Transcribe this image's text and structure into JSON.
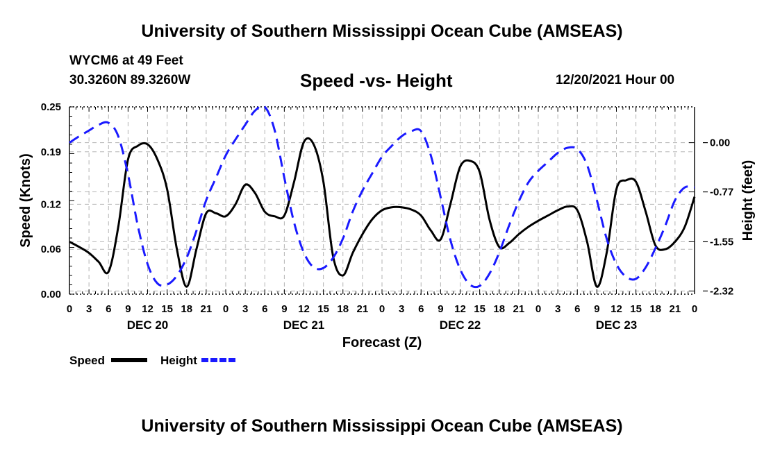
{
  "page": {
    "top_title": "University of Southern Mississippi Ocean Cube (AMSEAS)",
    "bottom_title": "University of Southern Mississippi Ocean Cube (AMSEAS)",
    "station": "WYCM6 at 49 Feet",
    "coords": "30.3260N  89.3260W",
    "datetime": "12/20/2021 Hour 00"
  },
  "chart_data": {
    "type": "line",
    "title": "Speed -vs- Height",
    "xlabel": "Forecast (Z)",
    "ylabel": "Speed (Knots)",
    "y2label": "Height (feet)",
    "ylim": [
      0,
      0.25
    ],
    "y2lim": [
      -2.37,
      0.56
    ],
    "yticks": [
      0.0,
      0.06,
      0.12,
      0.19,
      0.25
    ],
    "ytick_labels": [
      "0.00",
      "0.06",
      "0.12",
      "0.19",
      "0.25"
    ],
    "y2ticks": [
      0.0,
      -0.77,
      -1.55,
      -2.32
    ],
    "y2tick_labels": [
      "0.00",
      "-0.77",
      "-1.55",
      "-2.32"
    ],
    "xlim": [
      0,
      96
    ],
    "xtick_labels": [
      "0",
      "3",
      "6",
      "9",
      "12",
      "15",
      "18",
      "21",
      "0",
      "3",
      "6",
      "9",
      "12",
      "15",
      "18",
      "21",
      "0",
      "3",
      "6",
      "9",
      "12",
      "15",
      "18",
      "21",
      "0",
      "3",
      "6",
      "9",
      "12",
      "15",
      "18",
      "21",
      "0"
    ],
    "day_labels": [
      {
        "label": "DEC 20",
        "x": 12
      },
      {
        "label": "DEC 21",
        "x": 36
      },
      {
        "label": "DEC 22",
        "x": 60
      },
      {
        "label": "DEC 23",
        "x": 84
      }
    ],
    "grid": true,
    "legend_position": "bottom-left",
    "series": [
      {
        "name": "Speed",
        "color": "#000000",
        "style": "solid",
        "axis": "left",
        "x": [
          0,
          1.5,
          3,
          4.5,
          6,
          7.5,
          9,
          10.5,
          12,
          13.5,
          15,
          16.5,
          18,
          19.5,
          21,
          22.5,
          24,
          25.5,
          27,
          28.5,
          30,
          31.5,
          33,
          34.5,
          36,
          37.5,
          39,
          40.5,
          42,
          43.5,
          45,
          46.5,
          48,
          49.5,
          51,
          52.5,
          54,
          55.5,
          57,
          58.5,
          60,
          61.5,
          63,
          64.5,
          66,
          67.5,
          69,
          70.5,
          72,
          73.5,
          75,
          76.5,
          78,
          79.5,
          81,
          82.5,
          84,
          85.5,
          87,
          88.5,
          90,
          91.5,
          93,
          94.5,
          96
        ],
        "values": [
          0.07,
          0.063,
          0.055,
          0.043,
          0.03,
          0.09,
          0.18,
          0.198,
          0.2,
          0.18,
          0.14,
          0.06,
          0.01,
          0.06,
          0.108,
          0.108,
          0.104,
          0.12,
          0.146,
          0.135,
          0.11,
          0.104,
          0.105,
          0.15,
          0.203,
          0.2,
          0.15,
          0.05,
          0.025,
          0.055,
          0.08,
          0.1,
          0.112,
          0.116,
          0.116,
          0.113,
          0.105,
          0.085,
          0.073,
          0.12,
          0.17,
          0.178,
          0.163,
          0.1,
          0.063,
          0.068,
          0.08,
          0.09,
          0.098,
          0.105,
          0.112,
          0.117,
          0.112,
          0.07,
          0.01,
          0.055,
          0.14,
          0.152,
          0.15,
          0.11,
          0.065,
          0.06,
          0.07,
          0.09,
          0.13
        ]
      },
      {
        "name": "Height",
        "color": "#1a1aff",
        "style": "dashed",
        "axis": "right",
        "x": [
          0,
          1.5,
          3,
          4.5,
          6,
          7.5,
          9,
          10.5,
          12,
          13.5,
          15,
          16.5,
          18,
          19.5,
          21,
          22.5,
          24,
          25.5,
          27,
          28.5,
          30,
          31.5,
          33,
          34.5,
          36,
          37.5,
          39,
          40.5,
          42,
          43.5,
          45,
          46.5,
          48,
          49.5,
          51,
          52.5,
          54,
          55.5,
          57,
          58.5,
          60,
          61.5,
          63,
          64.5,
          66,
          67.5,
          69,
          70.5,
          72,
          73.5,
          75,
          76.5,
          78,
          79.5,
          81,
          82.5,
          84,
          85.5,
          87,
          88.5,
          90,
          91.5,
          93,
          94.5,
          96
        ],
        "values": [
          0.0,
          0.1,
          0.19,
          0.28,
          0.31,
          0.1,
          -0.5,
          -1.3,
          -1.9,
          -2.2,
          -2.22,
          -2.08,
          -1.8,
          -1.38,
          -0.9,
          -0.55,
          -0.2,
          0.05,
          0.28,
          0.5,
          0.56,
          0.2,
          -0.55,
          -1.25,
          -1.72,
          -1.95,
          -1.96,
          -1.8,
          -1.5,
          -1.08,
          -0.75,
          -0.48,
          -0.22,
          -0.05,
          0.1,
          0.18,
          0.18,
          -0.2,
          -0.85,
          -1.52,
          -1.98,
          -2.22,
          -2.24,
          -2.05,
          -1.72,
          -1.3,
          -0.92,
          -0.62,
          -0.44,
          -0.3,
          -0.16,
          -0.08,
          -0.1,
          -0.35,
          -0.9,
          -1.5,
          -1.9,
          -2.1,
          -2.13,
          -1.95,
          -1.65,
          -1.3,
          -0.9,
          -0.7,
          -0.7
        ]
      }
    ]
  }
}
